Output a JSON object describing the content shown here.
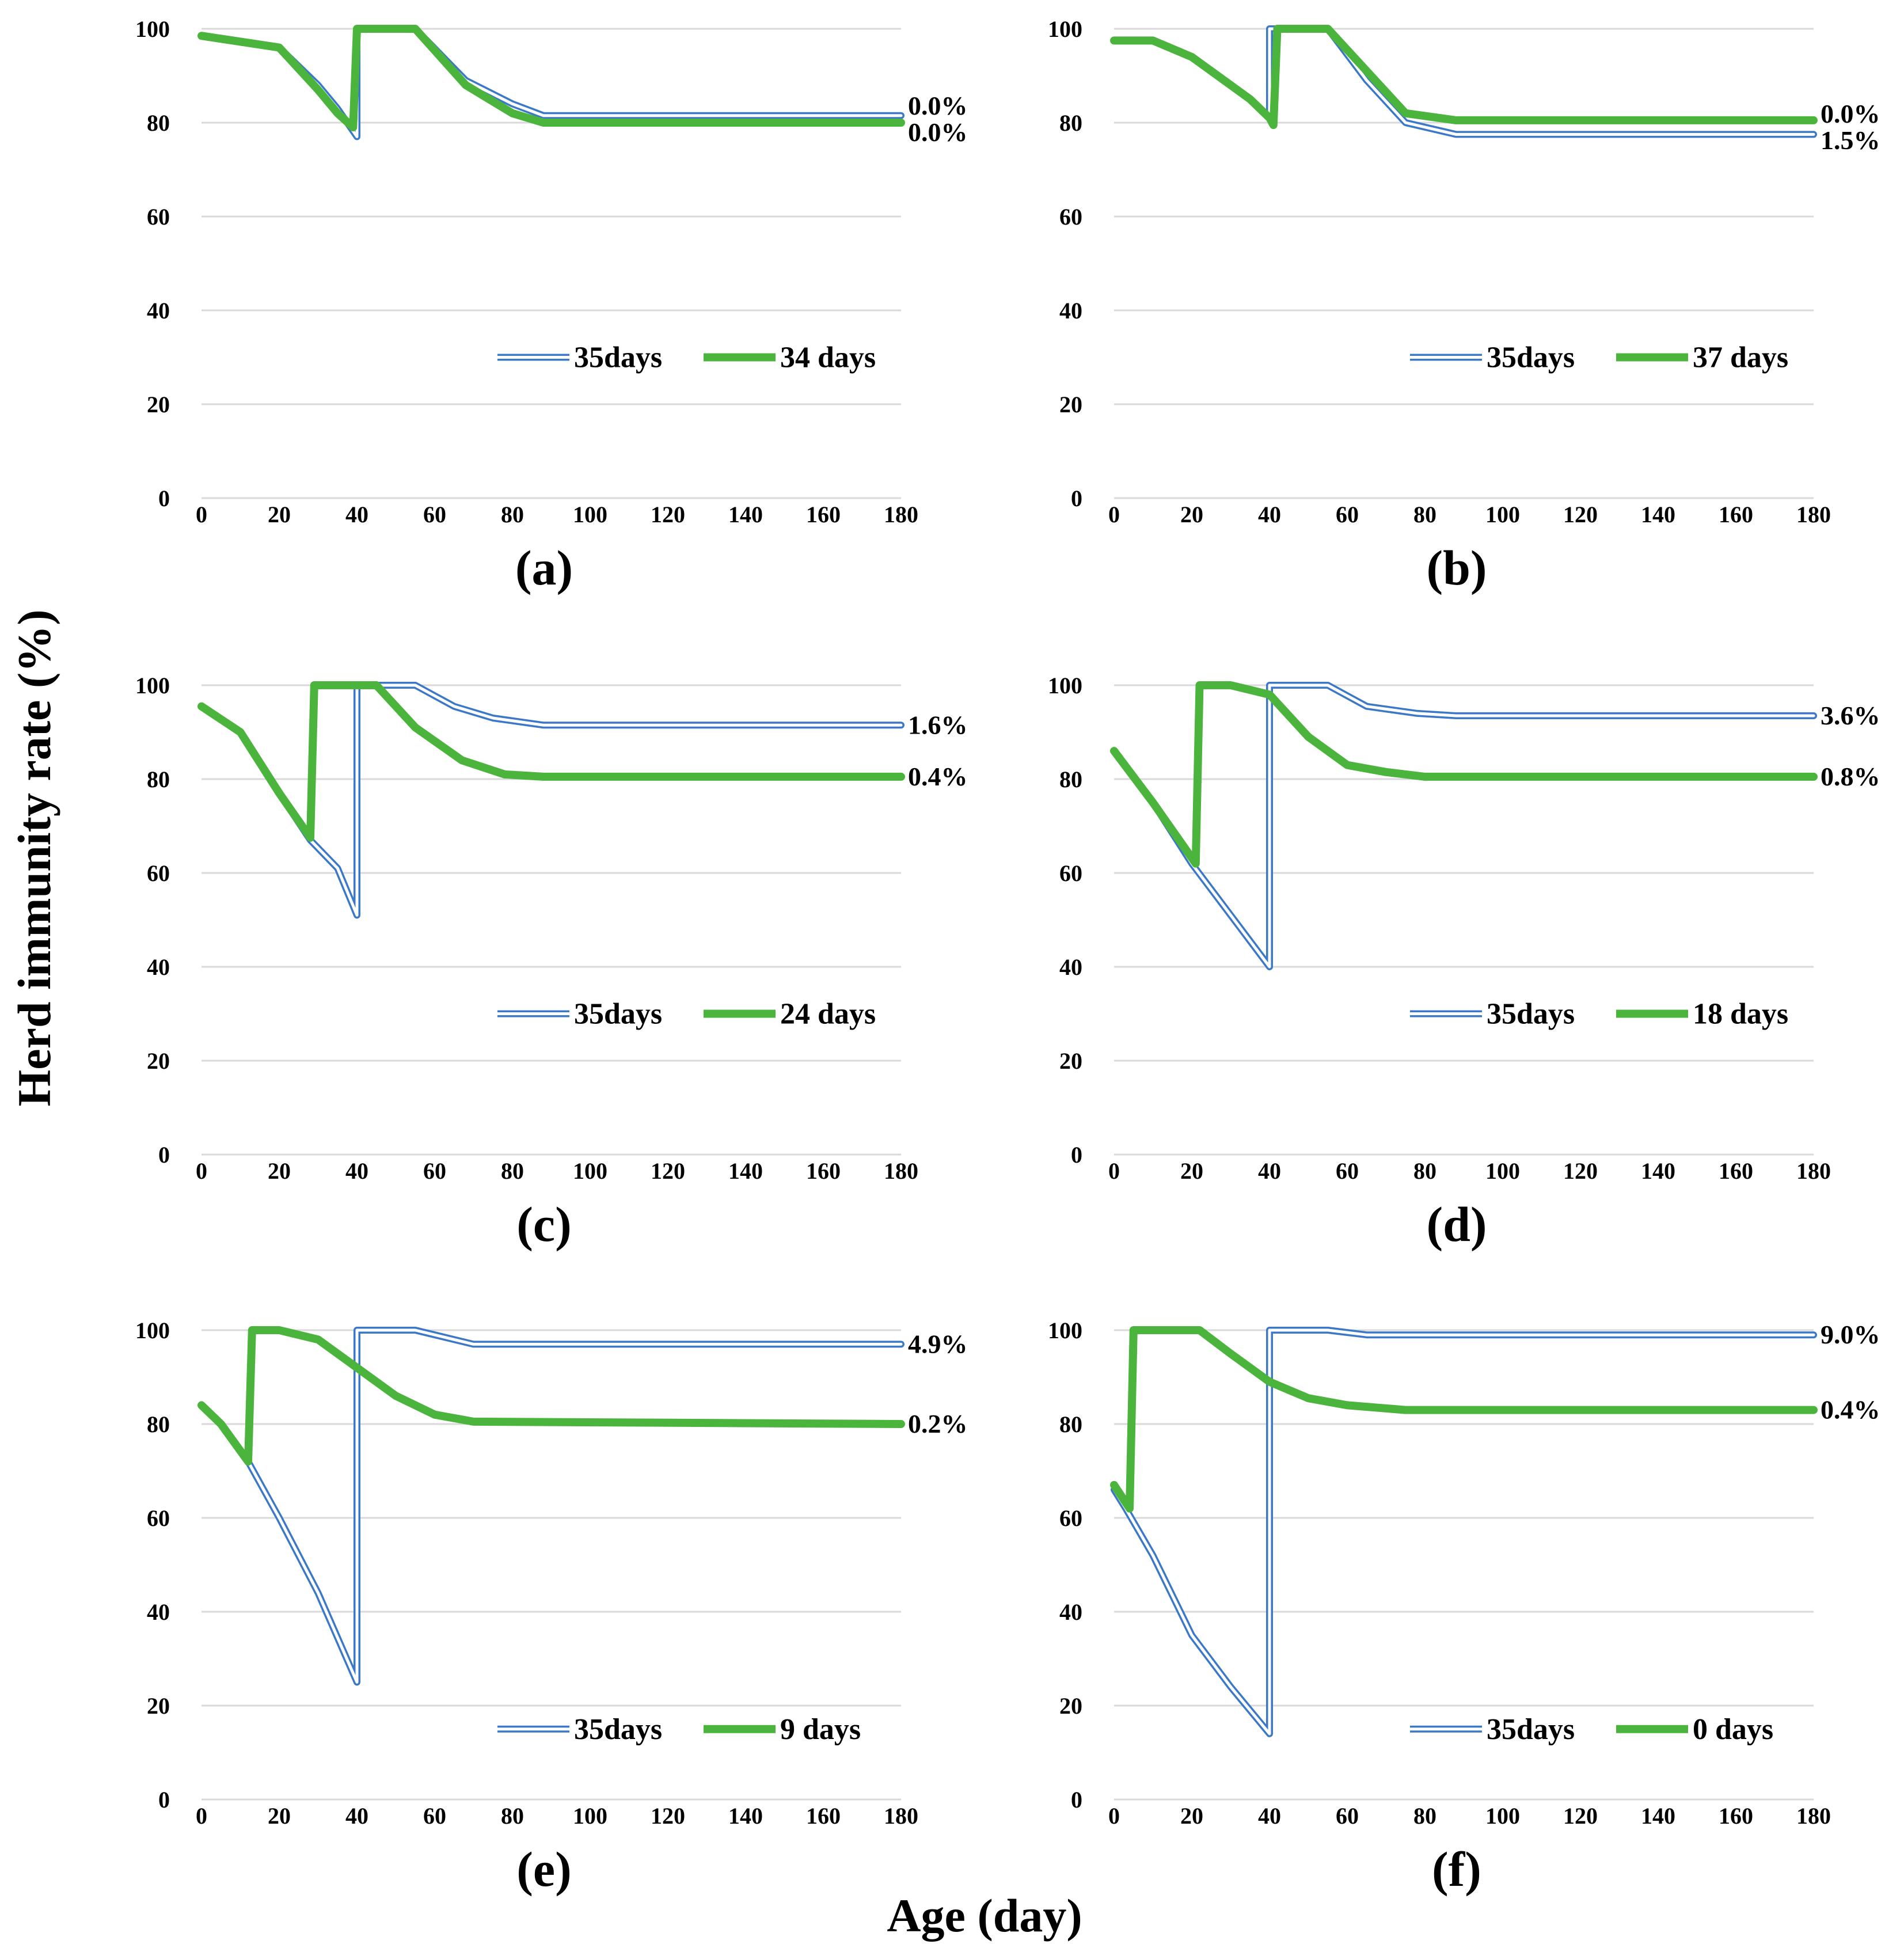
{
  "figure": {
    "y_axis_title": "Herd immunity rate (%)",
    "x_axis_title": "Age (day)"
  },
  "colors": {
    "blue_series": "#3b78c8",
    "green_series": "#4bb43c",
    "gridline": "#d9d9d9",
    "text": "#000000"
  },
  "chart_data": [
    {
      "type": "line",
      "panel_label": "(a)",
      "xlim": [
        0,
        180
      ],
      "ylim": [
        0,
        100
      ],
      "x_ticks": [
        "0",
        "20",
        "40",
        "60",
        "80",
        "100",
        "120",
        "140",
        "160",
        "180"
      ],
      "y_ticks": [
        "0",
        "20",
        "40",
        "60",
        "80",
        "100"
      ],
      "grid": true,
      "legend_position": "center-right",
      "series": [
        {
          "name": "35days",
          "style": "double-line-blue",
          "end_label": "0.0%",
          "points": [
            [
              0,
              98.5
            ],
            [
              20,
              96
            ],
            [
              30,
              88
            ],
            [
              35,
              83
            ],
            [
              40,
              77
            ],
            [
              40,
              100
            ],
            [
              55,
              100
            ],
            [
              68,
              89
            ],
            [
              80,
              84
            ],
            [
              88,
              81.5
            ],
            [
              180,
              81.5
            ]
          ]
        },
        {
          "name": "34 days",
          "style": "thick-green",
          "end_label": "0.0%",
          "points": [
            [
              0,
              98.5
            ],
            [
              20,
              96
            ],
            [
              30,
              87
            ],
            [
              35,
              82
            ],
            [
              39,
              79
            ],
            [
              40,
              100
            ],
            [
              55,
              100
            ],
            [
              68,
              88
            ],
            [
              80,
              82
            ],
            [
              88,
              80
            ],
            [
              180,
              80
            ]
          ]
        }
      ]
    },
    {
      "type": "line",
      "panel_label": "(b)",
      "xlim": [
        0,
        180
      ],
      "ylim": [
        0,
        100
      ],
      "x_ticks": [
        "0",
        "20",
        "40",
        "60",
        "80",
        "100",
        "120",
        "140",
        "160",
        "180"
      ],
      "y_ticks": [
        "0",
        "20",
        "40",
        "60",
        "80",
        "100"
      ],
      "grid": true,
      "legend_position": "center-right",
      "series": [
        {
          "name": "35days",
          "style": "double-line-blue",
          "end_label": "1.5%",
          "points": [
            [
              0,
              97.5
            ],
            [
              10,
              97.5
            ],
            [
              20,
              94
            ],
            [
              30,
              88
            ],
            [
              35,
              85
            ],
            [
              40,
              81
            ],
            [
              40,
              100
            ],
            [
              55,
              100
            ],
            [
              65,
              89
            ],
            [
              75,
              80
            ],
            [
              88,
              77.5
            ],
            [
              180,
              77.5
            ]
          ]
        },
        {
          "name": "37 days",
          "style": "thick-green",
          "end_label": "0.0%",
          "points": [
            [
              0,
              97.5
            ],
            [
              10,
              97.5
            ],
            [
              20,
              94
            ],
            [
              30,
              88
            ],
            [
              35,
              85
            ],
            [
              40,
              81
            ],
            [
              41,
              79.5
            ],
            [
              42,
              100
            ],
            [
              55,
              100
            ],
            [
              65,
              91
            ],
            [
              75,
              82
            ],
            [
              88,
              80.5
            ],
            [
              180,
              80.5
            ]
          ]
        }
      ]
    },
    {
      "type": "line",
      "panel_label": "(c)",
      "xlim": [
        0,
        180
      ],
      "ylim": [
        0,
        100
      ],
      "x_ticks": [
        "0",
        "20",
        "40",
        "60",
        "80",
        "100",
        "120",
        "140",
        "160",
        "180"
      ],
      "y_ticks": [
        "0",
        "20",
        "40",
        "60",
        "80",
        "100"
      ],
      "grid": true,
      "legend_position": "center-right",
      "series": [
        {
          "name": "35days",
          "style": "double-line-blue",
          "end_label": "1.6%",
          "points": [
            [
              0,
              95.5
            ],
            [
              10,
              90
            ],
            [
              20,
              77
            ],
            [
              28,
              67
            ],
            [
              35,
              61
            ],
            [
              40,
              51
            ],
            [
              40,
              100
            ],
            [
              55,
              100
            ],
            [
              65,
              95.5
            ],
            [
              75,
              93
            ],
            [
              88,
              91.5
            ],
            [
              180,
              91.5
            ]
          ]
        },
        {
          "name": "24 days",
          "style": "thick-green",
          "end_label": "0.4%",
          "points": [
            [
              0,
              95.5
            ],
            [
              10,
              90
            ],
            [
              20,
              77
            ],
            [
              28,
              67.5
            ],
            [
              29,
              100
            ],
            [
              45,
              100
            ],
            [
              55,
              91
            ],
            [
              67,
              84
            ],
            [
              78,
              81
            ],
            [
              88,
              80.5
            ],
            [
              180,
              80.5
            ]
          ]
        }
      ]
    },
    {
      "type": "line",
      "panel_label": "(d)",
      "xlim": [
        0,
        180
      ],
      "ylim": [
        0,
        100
      ],
      "x_ticks": [
        "0",
        "20",
        "40",
        "60",
        "80",
        "100",
        "120",
        "140",
        "160",
        "180"
      ],
      "y_ticks": [
        "0",
        "20",
        "40",
        "60",
        "80",
        "100"
      ],
      "grid": true,
      "legend_position": "center-right",
      "series": [
        {
          "name": "35days",
          "style": "double-line-blue",
          "end_label": "3.6%",
          "points": [
            [
              0,
              86
            ],
            [
              10,
              75
            ],
            [
              20,
              62
            ],
            [
              30,
              51
            ],
            [
              40,
              40
            ],
            [
              40,
              100
            ],
            [
              55,
              100
            ],
            [
              65,
              95.5
            ],
            [
              78,
              94
            ],
            [
              88,
              93.5
            ],
            [
              180,
              93.5
            ]
          ]
        },
        {
          "name": "18 days",
          "style": "thick-green",
          "end_label": "0.8%",
          "points": [
            [
              0,
              86
            ],
            [
              10,
              75
            ],
            [
              21,
              62
            ],
            [
              22,
              100
            ],
            [
              30,
              100
            ],
            [
              40,
              98
            ],
            [
              50,
              89
            ],
            [
              60,
              83
            ],
            [
              70,
              81.5
            ],
            [
              80,
              80.5
            ],
            [
              180,
              80.5
            ]
          ]
        }
      ]
    },
    {
      "type": "line",
      "panel_label": "(e)",
      "xlim": [
        0,
        180
      ],
      "ylim": [
        0,
        100
      ],
      "x_ticks": [
        "0",
        "20",
        "40",
        "60",
        "80",
        "100",
        "120",
        "140",
        "160",
        "180"
      ],
      "y_ticks": [
        "0",
        "20",
        "40",
        "60",
        "80",
        "100"
      ],
      "grid": true,
      "legend_position": "bottom-right",
      "series": [
        {
          "name": "35days",
          "style": "double-line-blue",
          "end_label": "4.9%",
          "points": [
            [
              0,
              84
            ],
            [
              5,
              80
            ],
            [
              12,
              72
            ],
            [
              20,
              60
            ],
            [
              30,
              44
            ],
            [
              40,
              25
            ],
            [
              40,
              100
            ],
            [
              55,
              100
            ],
            [
              65,
              98
            ],
            [
              70,
              97
            ],
            [
              180,
              97
            ]
          ]
        },
        {
          "name": "9 days",
          "style": "thick-green",
          "end_label": "0.2%",
          "points": [
            [
              0,
              84
            ],
            [
              5,
              80
            ],
            [
              12,
              72
            ],
            [
              13,
              100
            ],
            [
              20,
              100
            ],
            [
              30,
              98
            ],
            [
              40,
              92
            ],
            [
              50,
              86
            ],
            [
              60,
              82
            ],
            [
              70,
              80.5
            ],
            [
              180,
              80
            ]
          ]
        }
      ]
    },
    {
      "type": "line",
      "panel_label": "(f)",
      "xlim": [
        0,
        180
      ],
      "ylim": [
        0,
        100
      ],
      "x_ticks": [
        "0",
        "20",
        "40",
        "60",
        "80",
        "100",
        "120",
        "140",
        "160",
        "180"
      ],
      "y_ticks": [
        "0",
        "20",
        "40",
        "60",
        "80",
        "100"
      ],
      "grid": true,
      "legend_position": "bottom-right",
      "series": [
        {
          "name": "35days",
          "style": "double-line-blue",
          "end_label": "9.0%",
          "points": [
            [
              0,
              66
            ],
            [
              3,
              62
            ],
            [
              10,
              52
            ],
            [
              20,
              35
            ],
            [
              30,
              24
            ],
            [
              40,
              14
            ],
            [
              40,
              100
            ],
            [
              55,
              100
            ],
            [
              65,
              99
            ],
            [
              180,
              99
            ]
          ]
        },
        {
          "name": "0 days",
          "style": "thick-green",
          "end_label": "0.4%",
          "points": [
            [
              0,
              67
            ],
            [
              4,
              62
            ],
            [
              5,
              100
            ],
            [
              22,
              100
            ],
            [
              30,
              95
            ],
            [
              40,
              89
            ],
            [
              50,
              85.5
            ],
            [
              60,
              84
            ],
            [
              75,
              83
            ],
            [
              180,
              83
            ]
          ]
        }
      ]
    }
  ]
}
